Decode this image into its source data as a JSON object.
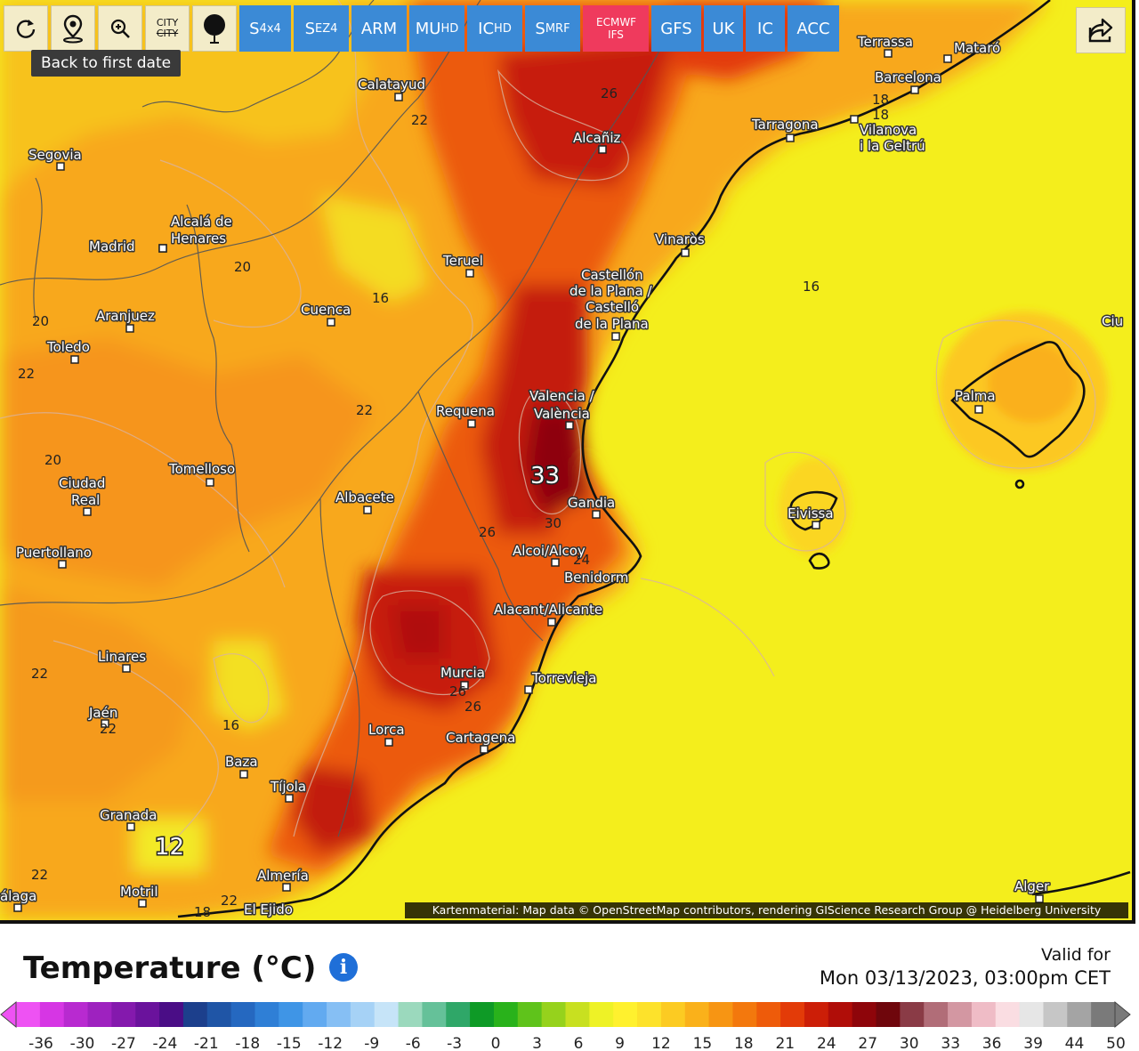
{
  "toolbar": {
    "tools": [
      {
        "name": "reload",
        "icon": "refresh-icon"
      },
      {
        "name": "location",
        "icon": "map-pin-icon"
      },
      {
        "name": "zoom",
        "icon": "zoom-in-icon"
      },
      {
        "name": "city",
        "line1": "CITY",
        "line2": "CITY"
      },
      {
        "name": "point",
        "icon": "pin-dot-icon"
      }
    ],
    "models": [
      {
        "main": "S",
        "sub": "4x4"
      },
      {
        "main": "S",
        "sub": "EZ4"
      },
      {
        "main": "ARM",
        "sub": ""
      },
      {
        "main": "MU",
        "sub": "HD"
      },
      {
        "main": "IC",
        "sub": "HD"
      },
      {
        "main": "S",
        "sub": "MRF"
      },
      {
        "main": "ECMWF IFS",
        "sub": "",
        "active": true
      },
      {
        "main": "GFS",
        "sub": ""
      },
      {
        "main": "UK",
        "sub": ""
      },
      {
        "main": "IC",
        "sub": ""
      },
      {
        "main": "ACC",
        "sub": ""
      }
    ],
    "share_icon": "share-icon"
  },
  "tooltip": "Back to first date",
  "map": {
    "cities": [
      {
        "name": "Terrassa"
      },
      {
        "name": "Mataró"
      },
      {
        "name": "Barcelona"
      },
      {
        "name": "Tarragona"
      },
      {
        "name": "Vilanova"
      },
      {
        "name": "i la Geltrú"
      },
      {
        "name": "Calatayud"
      },
      {
        "name": "Alcañiz"
      },
      {
        "name": "Segovia"
      },
      {
        "name": "Alcalá de"
      },
      {
        "name": "Henares"
      },
      {
        "name": "Madrid"
      },
      {
        "name": "Teruel"
      },
      {
        "name": "Vinaròs"
      },
      {
        "name": "Castellón"
      },
      {
        "name": "de la Plana /"
      },
      {
        "name": "Castelló"
      },
      {
        "name": "de la Plana"
      },
      {
        "name": "Aranjuez"
      },
      {
        "name": "Cuenca"
      },
      {
        "name": "Toledo"
      },
      {
        "name": "Valencia /"
      },
      {
        "name": "València"
      },
      {
        "name": "Requena"
      },
      {
        "name": "Palma"
      },
      {
        "name": "Tomelloso"
      },
      {
        "name": "Ciudad"
      },
      {
        "name": "Real"
      },
      {
        "name": "Albacete"
      },
      {
        "name": "Gandia"
      },
      {
        "name": "Eivissa"
      },
      {
        "name": "Puertollano"
      },
      {
        "name": "Alcoi/Alcoy"
      },
      {
        "name": "Benidorm"
      },
      {
        "name": "Alacant/Alicante"
      },
      {
        "name": "Linares"
      },
      {
        "name": "Murcia"
      },
      {
        "name": "Torrevieja"
      },
      {
        "name": "Jaén"
      },
      {
        "name": "Lorca"
      },
      {
        "name": "Cartagena"
      },
      {
        "name": "Baza"
      },
      {
        "name": "Tíjola"
      },
      {
        "name": "Granada"
      },
      {
        "name": "Almería"
      },
      {
        "name": "Motril"
      },
      {
        "name": "El Ejido"
      },
      {
        "name": "álaga"
      },
      {
        "name": "Alger"
      },
      {
        "name": "Ciu"
      }
    ],
    "isotherm_labels": [
      "26",
      "22",
      "18",
      "18",
      "20",
      "16",
      "16",
      "20",
      "22",
      "22",
      "20",
      "26",
      "24",
      "30",
      "22",
      "16",
      "22",
      "26",
      "26",
      "22",
      "18",
      "22"
    ],
    "extrema": [
      {
        "label": "33"
      },
      {
        "label": "12"
      }
    ],
    "attribution": "Kartenmaterial: Map data © OpenStreetMap contributors, rendering GIScience Research Group @ Heidelberg University"
  },
  "legend": {
    "title": "Temperature (°C)",
    "info_icon": "info-icon",
    "valid_label": "Valid for",
    "valid_date": "Mon 03/13/2023, 03:00pm CET",
    "ticks": [
      "-36",
      "-30",
      "-27",
      "-24",
      "-21",
      "-18",
      "-15",
      "-12",
      "-9",
      "-6",
      "-3",
      "0",
      "3",
      "6",
      "9",
      "12",
      "15",
      "18",
      "21",
      "24",
      "27",
      "30",
      "33",
      "36",
      "39",
      "44",
      "50"
    ],
    "colors": [
      "#ee52f3",
      "#d636e4",
      "#b82ad0",
      "#9e22bf",
      "#8419ad",
      "#6a129c",
      "#4a0d86",
      "#1c3f8c",
      "#1f55a6",
      "#2568c0",
      "#2f7fd6",
      "#3f95e6",
      "#62aaf0",
      "#86bff4",
      "#a6d2f6",
      "#c6e4f8",
      "#9bd9bd",
      "#65c199",
      "#2fa768",
      "#0e9a26",
      "#29b21b",
      "#5fc31b",
      "#96d21c",
      "#c8e020",
      "#eef226",
      "#fff12e",
      "#fde22b",
      "#fccb22",
      "#fab11a",
      "#f79513",
      "#f3780d",
      "#ee5b0a",
      "#e33b08",
      "#cc1e07",
      "#b00d08",
      "#8e050a",
      "#6f060c",
      "#8a3b46",
      "#b16d78",
      "#d397a2",
      "#efbcc6",
      "#fadde2",
      "#e6e6e6",
      "#c6c6c6",
      "#a4a4a4",
      "#7a7a7a"
    ]
  }
}
